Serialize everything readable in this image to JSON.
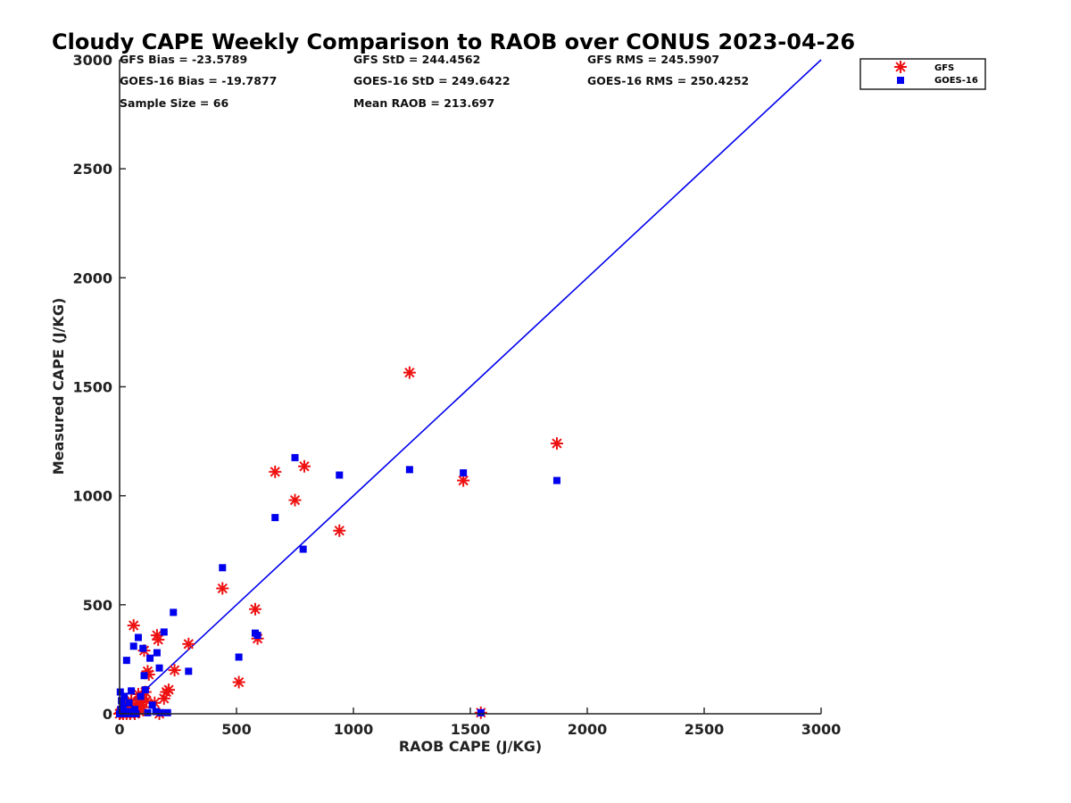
{
  "chart_data": {
    "type": "scatter",
    "title": "Cloudy CAPE Weekly Comparison to RAOB over CONUS 2023-04-26",
    "xlabel": "RAOB CAPE (J/KG)",
    "ylabel": "Measured CAPE (J/KG)",
    "xlim": [
      0,
      3000
    ],
    "ylim": [
      0,
      3000
    ],
    "xticks": [
      0,
      500,
      1000,
      1500,
      2000,
      2500,
      3000
    ],
    "yticks": [
      0,
      500,
      1000,
      1500,
      2000,
      2500,
      3000
    ],
    "grid": false,
    "legend_position": "top-right",
    "stats": [
      [
        "GFS Bias = -23.5789",
        "GFS StD = 244.4562",
        "GFS RMS = 245.5907"
      ],
      [
        "GOES-16 Bias = -19.7877",
        "GOES-16 StD = 249.6422",
        "GOES-16 RMS = 250.4252"
      ],
      [
        "Sample Size = 66",
        "Mean RAOB = 213.697",
        ""
      ]
    ],
    "reference_line": {
      "from": [
        0,
        0
      ],
      "to": [
        3000,
        3000
      ],
      "color": "#0000ee"
    },
    "series": [
      {
        "name": "GFS",
        "marker": "asterisk",
        "color": "#ee1111",
        "points": [
          [
            0,
            0
          ],
          [
            5,
            5
          ],
          [
            10,
            15
          ],
          [
            15,
            0
          ],
          [
            20,
            10
          ],
          [
            25,
            20
          ],
          [
            30,
            0
          ],
          [
            35,
            40
          ],
          [
            40,
            10
          ],
          [
            45,
            0
          ],
          [
            50,
            60
          ],
          [
            55,
            30
          ],
          [
            60,
            405
          ],
          [
            65,
            0
          ],
          [
            70,
            20
          ],
          [
            75,
            50
          ],
          [
            80,
            90
          ],
          [
            85,
            10
          ],
          [
            90,
            40
          ],
          [
            95,
            70
          ],
          [
            100,
            30
          ],
          [
            105,
            290
          ],
          [
            110,
            100
          ],
          [
            115,
            60
          ],
          [
            120,
            195
          ],
          [
            125,
            180
          ],
          [
            150,
            50
          ],
          [
            160,
            360
          ],
          [
            165,
            340
          ],
          [
            170,
            0
          ],
          [
            190,
            70
          ],
          [
            200,
            100
          ],
          [
            210,
            110
          ],
          [
            235,
            200
          ],
          [
            295,
            320
          ],
          [
            440,
            575
          ],
          [
            510,
            145
          ],
          [
            580,
            480
          ],
          [
            590,
            345
          ],
          [
            665,
            1110
          ],
          [
            750,
            980
          ],
          [
            790,
            1135
          ],
          [
            940,
            840
          ],
          [
            1240,
            1565
          ],
          [
            1470,
            1070
          ],
          [
            1545,
            5
          ],
          [
            1870,
            1240
          ]
        ]
      },
      {
        "name": "GOES-16",
        "marker": "square",
        "color": "#0000ee",
        "points": [
          [
            0,
            0
          ],
          [
            3,
            100
          ],
          [
            5,
            20
          ],
          [
            8,
            60
          ],
          [
            10,
            0
          ],
          [
            15,
            30
          ],
          [
            20,
            80
          ],
          [
            25,
            0
          ],
          [
            30,
            245
          ],
          [
            35,
            10
          ],
          [
            40,
            50
          ],
          [
            50,
            105
          ],
          [
            55,
            0
          ],
          [
            60,
            310
          ],
          [
            65,
            20
          ],
          [
            70,
            0
          ],
          [
            80,
            350
          ],
          [
            90,
            80
          ],
          [
            100,
            300
          ],
          [
            105,
            175
          ],
          [
            110,
            110
          ],
          [
            120,
            5
          ],
          [
            130,
            255
          ],
          [
            140,
            40
          ],
          [
            155,
            10
          ],
          [
            160,
            280
          ],
          [
            170,
            210
          ],
          [
            175,
            5
          ],
          [
            190,
            375
          ],
          [
            205,
            5
          ],
          [
            230,
            465
          ],
          [
            295,
            195
          ],
          [
            440,
            670
          ],
          [
            510,
            260
          ],
          [
            580,
            370
          ],
          [
            590,
            360
          ],
          [
            665,
            900
          ],
          [
            750,
            1175
          ],
          [
            785,
            755
          ],
          [
            940,
            1095
          ],
          [
            1240,
            1120
          ],
          [
            1470,
            1105
          ],
          [
            1545,
            5
          ],
          [
            1870,
            1070
          ]
        ]
      }
    ]
  }
}
